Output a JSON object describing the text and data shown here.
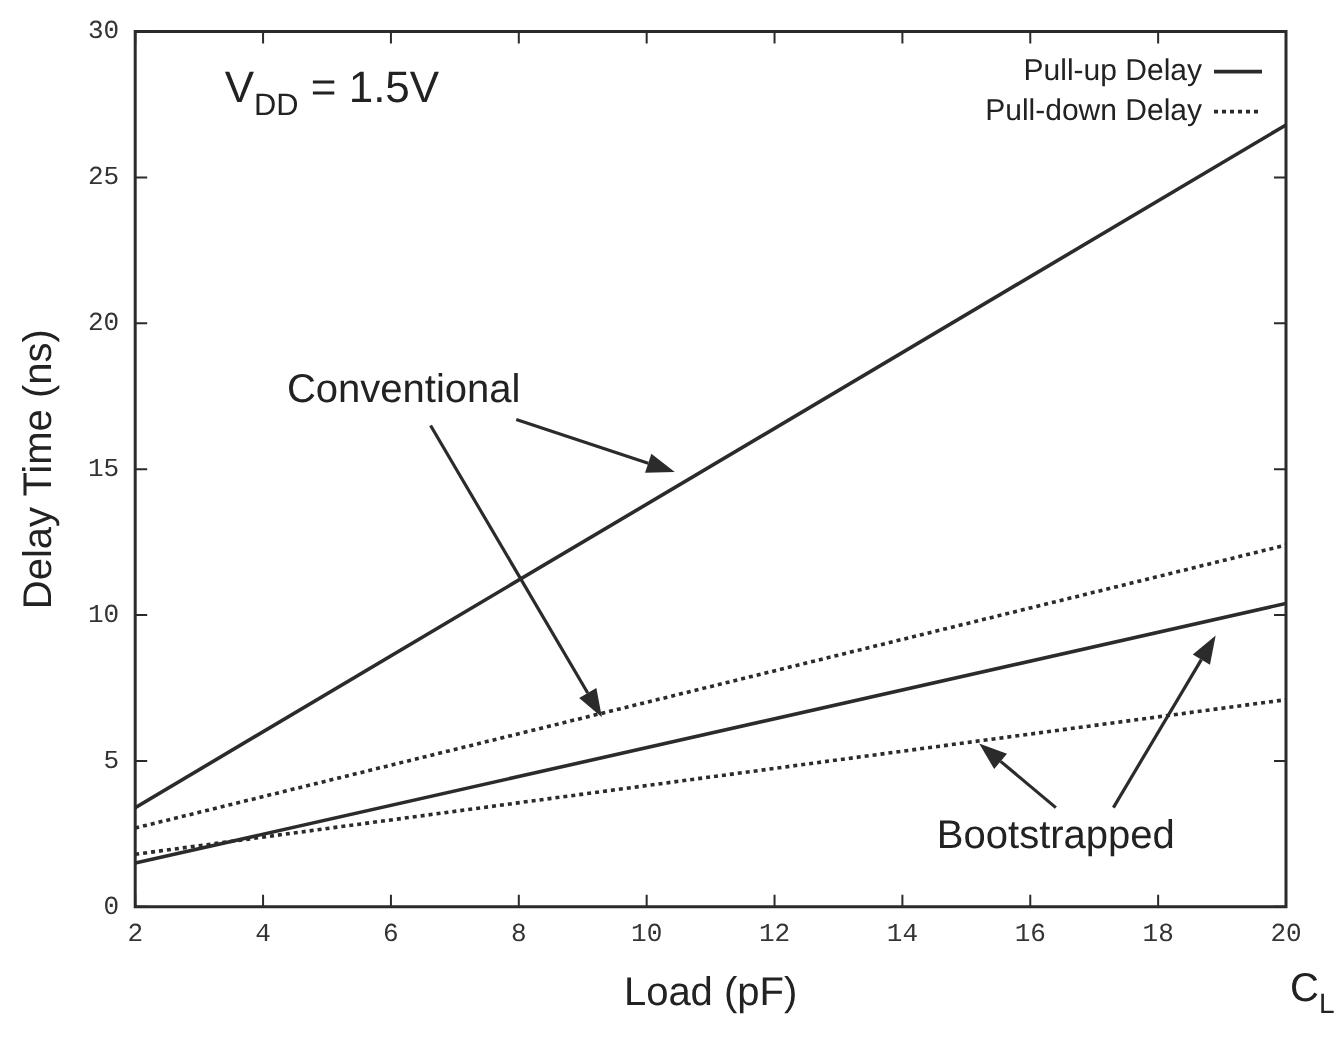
{
  "chart_data": {
    "type": "line",
    "xlabel": "Load (pF)",
    "ylabel": "Delay Time (ns)",
    "x": [
      2,
      20
    ],
    "series": [
      {
        "name": "Pull-up Delay",
        "color": "#2b2b2b",
        "line_style": "solid",
        "values": [
          3.4,
          26.8
        ]
      },
      {
        "name": "Pull-down Delay",
        "color": "#2b2b2b",
        "line_style": "dotted",
        "values": [
          2.7,
          12.4
        ]
      },
      {
        "color": "#2b2b2b",
        "line_style": "solid",
        "values": [
          1.5,
          10.4
        ]
      },
      {
        "color": "#2b2b2b",
        "line_style": "dotted",
        "values": [
          1.8,
          7.1
        ]
      }
    ],
    "xlim": [
      2,
      20
    ],
    "xticks": [
      2,
      4,
      6,
      8,
      10,
      12,
      14,
      16,
      18,
      20
    ],
    "ylim": [
      0,
      30
    ],
    "yticks": [
      0,
      5,
      10,
      15,
      20,
      25,
      30
    ],
    "legend": "top right",
    "marker": "none",
    "annotations": [
      "V$_{DD}$ = 1.5V",
      "Conventional",
      "Bootstrapped",
      "C$_{L}$"
    ]
  }
}
